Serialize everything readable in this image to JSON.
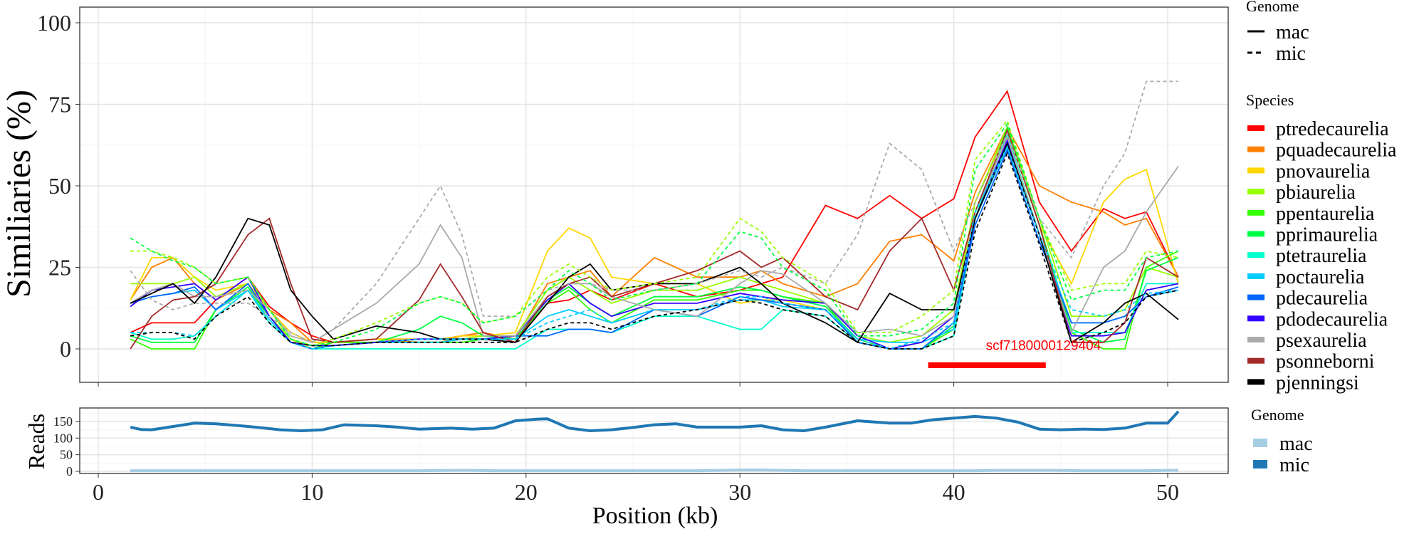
{
  "chart_data": [
    {
      "type": "line",
      "ylabel": "Similiaries (%)",
      "xlabel": "Position (kb)",
      "ylim": [
        -8,
        104
      ],
      "xlim": [
        -1,
        53
      ],
      "yticks": [
        "0",
        "25",
        "50",
        "75",
        "100"
      ],
      "ytick_values": [
        0,
        25,
        50,
        75,
        100
      ],
      "grid": true,
      "annotation": {
        "text": "scf7180000129404",
        "color": "#ff0000",
        "bar_start": 38.8,
        "bar_end": 44.3,
        "bar_y": -5,
        "text_x": 41.5,
        "text_y": -0.3
      },
      "legend_genome": {
        "title": "Genome",
        "items": [
          "mac",
          "mic"
        ]
      },
      "legend_species": {
        "title": "Species",
        "placement": "right"
      },
      "x": [
        1.5,
        2.5,
        3.5,
        4.5,
        5.5,
        7,
        8,
        9,
        10,
        11,
        13,
        15,
        16,
        17,
        18,
        19.5,
        21,
        22,
        23,
        24,
        26,
        28,
        30,
        31,
        32,
        34,
        35.5,
        37,
        38.5,
        40,
        41,
        42.5,
        44,
        45.5,
        47,
        48,
        49,
        50.5
      ],
      "series": [
        {
          "name": "ptredecaurelia",
          "genome": "mac",
          "color": "#ff0000",
          "values": [
            5,
            8,
            8,
            8,
            15,
            22,
            13,
            8,
            4,
            2,
            3,
            3,
            3,
            4,
            5,
            2,
            14,
            15,
            18,
            15,
            20,
            16,
            18,
            20,
            22,
            44,
            40,
            47,
            40,
            46,
            65,
            79,
            45,
            30,
            43,
            40,
            42,
            22
          ]
        },
        {
          "name": "pquadecaurelia",
          "genome": "mac",
          "color": "#ff7f00",
          "values": [
            15,
            25,
            28,
            20,
            15,
            20,
            12,
            8,
            2,
            2,
            3,
            2,
            2,
            4,
            5,
            3,
            20,
            22,
            24,
            16,
            28,
            22,
            22,
            24,
            20,
            16,
            20,
            33,
            35,
            27,
            48,
            68,
            50,
            45,
            42,
            38,
            40,
            22
          ]
        },
        {
          "name": "pnovaurelia",
          "genome": "mac",
          "color": "#ffd700",
          "values": [
            15,
            28,
            28,
            22,
            18,
            20,
            12,
            5,
            2,
            2,
            3,
            3,
            3,
            4,
            4,
            5,
            30,
            37,
            34,
            22,
            20,
            20,
            14,
            15,
            15,
            12,
            2,
            0,
            2,
            10,
            45,
            67,
            38,
            20,
            45,
            52,
            55,
            20
          ]
        },
        {
          "name": "pbiaurelia",
          "genome": "mac",
          "color": "#99ff00",
          "values": [
            20,
            20,
            20,
            22,
            16,
            20,
            10,
            3,
            0,
            2,
            2,
            2,
            2,
            3,
            4,
            4,
            18,
            22,
            18,
            14,
            18,
            18,
            22,
            20,
            18,
            14,
            4,
            2,
            4,
            12,
            45,
            68,
            40,
            10,
            10,
            12,
            25,
            22
          ]
        },
        {
          "name": "ppentaurelia",
          "genome": "mac",
          "color": "#33ff00",
          "values": [
            3,
            0,
            0,
            0,
            12,
            18,
            10,
            2,
            0,
            2,
            2,
            2,
            2,
            2,
            3,
            3,
            14,
            18,
            12,
            8,
            15,
            15,
            18,
            18,
            16,
            14,
            2,
            0,
            0,
            6,
            40,
            68,
            38,
            5,
            0,
            0,
            25,
            30
          ]
        },
        {
          "name": "pprimaurelia",
          "genome": "mac",
          "color": "#00ff44",
          "values": [
            4,
            2,
            2,
            2,
            12,
            19,
            10,
            2,
            0,
            1,
            2,
            6,
            10,
            8,
            4,
            3,
            15,
            19,
            14,
            10,
            16,
            16,
            19,
            18,
            16,
            13,
            3,
            0,
            0,
            7,
            42,
            67,
            38,
            6,
            2,
            3,
            24,
            28
          ]
        },
        {
          "name": "ptetraurelia",
          "genome": "mac",
          "color": "#00ffcc",
          "values": [
            5,
            3,
            3,
            4,
            10,
            18,
            8,
            2,
            0,
            0,
            0,
            0,
            0,
            0,
            0,
            0,
            6,
            6,
            6,
            5,
            10,
            10,
            6,
            6,
            12,
            10,
            2,
            0,
            0,
            4,
            40,
            66,
            35,
            5,
            5,
            5,
            20,
            20
          ]
        },
        {
          "name": "poctaurelia",
          "genome": "mac",
          "color": "#00ccff",
          "values": [
            14,
            16,
            17,
            18,
            12,
            18,
            9,
            2,
            0,
            1,
            2,
            2,
            2,
            3,
            3,
            3,
            10,
            12,
            10,
            8,
            12,
            12,
            15,
            15,
            13,
            12,
            3,
            2,
            2,
            6,
            40,
            62,
            35,
            8,
            8,
            10,
            16,
            18
          ]
        },
        {
          "name": "pdecaurelia",
          "genome": "mac",
          "color": "#0066ff",
          "values": [
            14,
            16,
            17,
            19,
            12,
            20,
            10,
            2,
            0,
            1,
            2,
            3,
            3,
            3,
            3,
            4,
            4,
            6,
            6,
            5,
            12,
            10,
            16,
            15,
            14,
            12,
            2,
            0,
            0,
            8,
            38,
            61,
            33,
            8,
            8,
            10,
            16,
            19
          ]
        },
        {
          "name": "pdodecaurelia",
          "genome": "mac",
          "color": "#3300ff",
          "values": [
            13,
            18,
            19,
            20,
            15,
            22,
            10,
            2,
            1,
            1,
            2,
            3,
            3,
            3,
            3,
            4,
            15,
            20,
            14,
            10,
            14,
            14,
            17,
            16,
            15,
            14,
            4,
            0,
            2,
            10,
            40,
            64,
            35,
            4,
            4,
            5,
            18,
            20
          ]
        },
        {
          "name": "psexaurelia",
          "genome": "mac",
          "color": "#aaaaaa",
          "values": [
            14,
            18,
            20,
            16,
            16,
            18,
            12,
            4,
            2,
            6,
            14,
            26,
            38,
            28,
            4,
            4,
            16,
            20,
            20,
            16,
            12,
            10,
            20,
            24,
            23,
            14,
            5,
            6,
            4,
            10,
            42,
            65,
            35,
            5,
            25,
            30,
            42,
            56
          ]
        },
        {
          "name": "psonneborni",
          "genome": "mac",
          "color": "#a52a2a",
          "values": [
            0,
            10,
            15,
            16,
            20,
            35,
            40,
            20,
            3,
            2,
            3,
            15,
            26,
            16,
            5,
            2,
            16,
            20,
            22,
            16,
            20,
            24,
            30,
            25,
            28,
            16,
            12,
            30,
            40,
            18,
            42,
            67,
            38,
            2,
            2,
            8,
            28,
            22
          ]
        },
        {
          "name": "pjenningsi",
          "genome": "mac",
          "color": "#000000",
          "values": [
            14,
            17,
            20,
            14,
            22,
            40,
            38,
            18,
            10,
            3,
            7,
            5,
            3,
            3,
            3,
            2,
            14,
            22,
            26,
            18,
            20,
            20,
            25,
            20,
            14,
            8,
            2,
            17,
            12,
            12,
            40,
            63,
            35,
            2,
            8,
            14,
            17,
            9
          ]
        },
        {
          "name": "psexaurelia",
          "genome": "mic",
          "color": "#aaaaaa",
          "values": [
            24,
            15,
            12,
            14,
            14,
            14,
            10,
            5,
            2,
            6,
            20,
            40,
            50,
            35,
            10,
            10,
            18,
            20,
            20,
            18,
            18,
            20,
            24,
            22,
            25,
            20,
            35,
            63,
            55,
            30,
            45,
            66,
            40,
            28,
            50,
            60,
            82,
            82
          ]
        },
        {
          "name": "pbiaurelia",
          "genome": "mic",
          "color": "#99ff00",
          "values": [
            30,
            30,
            28,
            25,
            20,
            22,
            12,
            3,
            1,
            3,
            8,
            14,
            16,
            14,
            8,
            10,
            22,
            26,
            22,
            18,
            20,
            22,
            40,
            36,
            28,
            20,
            5,
            5,
            10,
            18,
            58,
            70,
            40,
            18,
            20,
            20,
            30,
            28
          ]
        },
        {
          "name": "pprimaurelia",
          "genome": "mic",
          "color": "#00ff44",
          "values": [
            34,
            30,
            27,
            25,
            20,
            22,
            12,
            3,
            1,
            2,
            6,
            14,
            16,
            14,
            8,
            10,
            18,
            24,
            20,
            15,
            18,
            20,
            36,
            34,
            25,
            18,
            4,
            4,
            6,
            14,
            55,
            69,
            40,
            15,
            18,
            18,
            28,
            30
          ]
        },
        {
          "name": "poctaurelia",
          "genome": "mic",
          "color": "#00ccff",
          "values": [
            5,
            5,
            5,
            4,
            10,
            18,
            8,
            2,
            0,
            1,
            2,
            3,
            3,
            3,
            3,
            3,
            8,
            10,
            12,
            8,
            12,
            12,
            16,
            16,
            14,
            12,
            3,
            0,
            3,
            8,
            42,
            62,
            35,
            12,
            10,
            12,
            17,
            18
          ]
        },
        {
          "name": "pjenningsi",
          "genome": "mic",
          "color": "#000000",
          "values": [
            4,
            5,
            5,
            3,
            10,
            16,
            8,
            2,
            1,
            1,
            2,
            2,
            2,
            2,
            2,
            2,
            6,
            8,
            8,
            6,
            10,
            12,
            15,
            14,
            12,
            10,
            2,
            0,
            0,
            4,
            36,
            60,
            32,
            2,
            5,
            8,
            16,
            18
          ]
        }
      ]
    },
    {
      "type": "line",
      "ylabel": "Reads",
      "xlabel": "Position (kb)",
      "ylim": [
        -5,
        190
      ],
      "yticks": [
        "0",
        "50",
        "100",
        "150"
      ],
      "ytick_values": [
        0,
        50,
        100,
        150
      ],
      "xticks": [
        "0",
        "10",
        "20",
        "30",
        "40",
        "50"
      ],
      "xtick_values": [
        0,
        10,
        20,
        30,
        40,
        50
      ],
      "legend": {
        "title": "Genome",
        "items": [
          "mac",
          "mic"
        ]
      },
      "x": [
        1.5,
        2,
        2.5,
        3.5,
        4.5,
        5.5,
        6.5,
        7.5,
        8.5,
        9.5,
        10.5,
        11.5,
        13,
        14,
        15,
        16.5,
        17.5,
        18.5,
        19.5,
        20.5,
        21,
        22,
        23,
        24,
        25,
        26,
        27,
        28,
        29,
        30,
        31,
        32,
        33,
        34,
        35.5,
        37,
        38,
        39,
        40,
        41,
        42,
        43,
        44,
        45,
        46,
        47,
        48,
        49,
        50,
        50.5
      ],
      "series": [
        {
          "name": "mac",
          "color": "#a6cee3",
          "values": [
            2,
            2,
            2,
            2,
            2,
            2,
            2,
            2,
            2,
            2,
            2,
            2,
            2,
            2,
            2,
            3,
            3,
            2,
            2,
            2,
            2,
            2,
            2,
            2,
            2,
            2,
            2,
            2,
            3,
            4,
            4,
            3,
            2,
            2,
            2,
            2,
            2,
            2,
            2,
            2,
            3,
            3,
            3,
            3,
            2,
            2,
            2,
            2,
            3,
            3
          ]
        },
        {
          "name": "mic",
          "color": "#1f78b4",
          "values": [
            133,
            126,
            125,
            135,
            145,
            143,
            138,
            132,
            125,
            122,
            125,
            140,
            137,
            133,
            127,
            130,
            127,
            130,
            152,
            157,
            158,
            130,
            122,
            125,
            132,
            140,
            143,
            133,
            133,
            133,
            137,
            125,
            122,
            133,
            152,
            145,
            145,
            155,
            160,
            165,
            160,
            148,
            127,
            125,
            127,
            126,
            130,
            145,
            145,
            180
          ]
        }
      ]
    }
  ]
}
